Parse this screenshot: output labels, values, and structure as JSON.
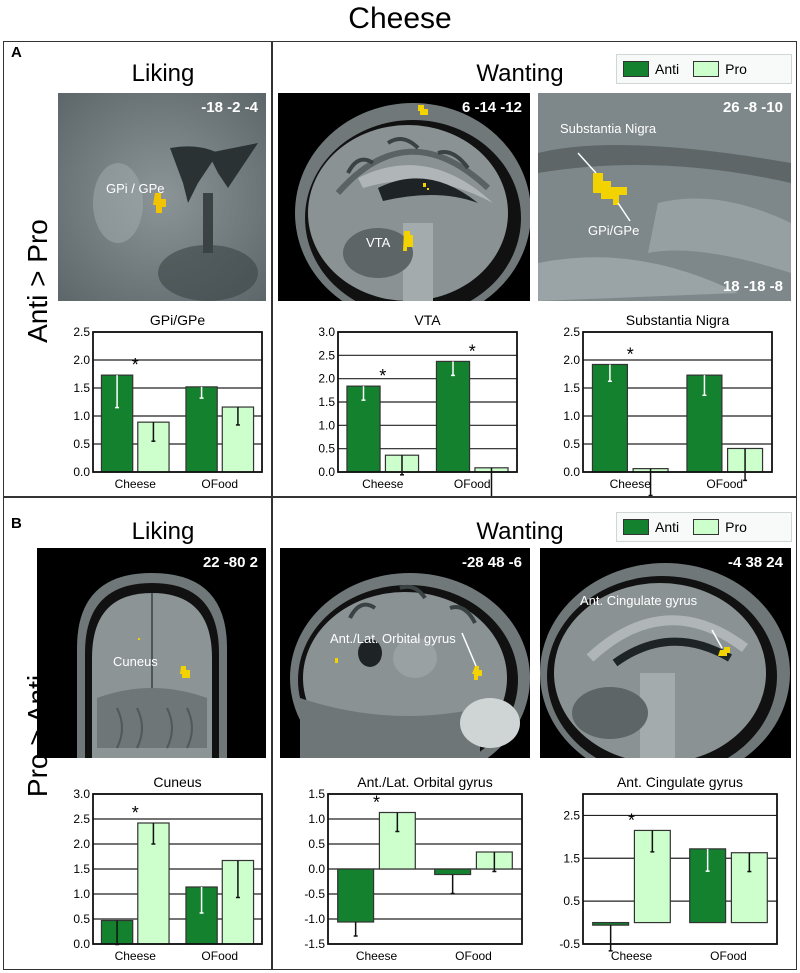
{
  "figure_title": "Cheese",
  "colors": {
    "anti": "#13812e",
    "pro": "#ccffcc",
    "highlight": "#f2d300"
  },
  "legend": {
    "anti": "Anti",
    "pro": "Pro"
  },
  "panels": [
    {
      "letter": "A",
      "side_label": "Anti > Pro",
      "liking_title": "Liking",
      "wanting_title": "Wanting",
      "images": [
        {
          "coord": "-18 -2 -4",
          "labels": [
            "GPi / GPe"
          ]
        },
        {
          "coord": "6 -14 -12",
          "labels": [
            "VTA"
          ]
        },
        {
          "coord": "26 -8 -10",
          "coord2": "18 -18 -8",
          "labels": [
            "Substantia Nigra",
            "GPi/GPe"
          ]
        }
      ]
    },
    {
      "letter": "B",
      "side_label": "Pro > Anti",
      "liking_title": "Liking",
      "wanting_title": "Wanting",
      "images": [
        {
          "coord": "22 -80 2",
          "labels": [
            "Cuneus"
          ]
        },
        {
          "coord": "-28 48 -6",
          "labels": [
            "Ant./Lat. Orbital gyrus"
          ]
        },
        {
          "coord": "-4 38 24",
          "labels": [
            "Ant. Cingulate gyrus"
          ]
        }
      ]
    }
  ],
  "chart_data": [
    {
      "type": "bar",
      "title": "GPi/GPe",
      "categories": [
        "Cheese",
        "OFood"
      ],
      "series": [
        {
          "name": "Anti",
          "values": [
            1.73,
            1.52
          ],
          "errors": [
            0.58,
            0.2
          ]
        },
        {
          "name": "Pro",
          "values": [
            0.89,
            1.16
          ],
          "errors": [
            0.34,
            0.32
          ]
        }
      ],
      "ylim": [
        0,
        2.5
      ],
      "yticks": [
        "0.0",
        "0.5",
        "1.0",
        "1.5",
        "2.0",
        "2.5"
      ],
      "grid": true,
      "significance": [
        "Cheese"
      ]
    },
    {
      "type": "bar",
      "title": "VTA",
      "categories": [
        "Cheese",
        "OFood"
      ],
      "series": [
        {
          "name": "Anti",
          "values": [
            1.84,
            2.37
          ],
          "errors": [
            0.3,
            0.3
          ]
        },
        {
          "name": "Pro",
          "values": [
            0.36,
            0.09
          ],
          "errors": [
            0.42,
            0.68
          ]
        }
      ],
      "ylim": [
        0,
        3.0
      ],
      "yticks": [
        "0.0",
        "0.5",
        "1.0",
        "1.5",
        "2.0",
        "2.5",
        "3.0"
      ],
      "grid": true,
      "significance": [
        "Cheese",
        "OFood"
      ]
    },
    {
      "type": "bar",
      "title": "Substantia Nigra",
      "categories": [
        "Cheese",
        "OFood"
      ],
      "series": [
        {
          "name": "Anti",
          "values": [
            1.92,
            1.73
          ],
          "errors": [
            0.3,
            0.36
          ]
        },
        {
          "name": "Pro",
          "values": [
            0.06,
            0.42
          ],
          "errors": [
            0.48,
            0.57
          ]
        }
      ],
      "ylim": [
        0,
        2.5
      ],
      "yticks": [
        "0.0",
        "0.5",
        "1.0",
        "1.5",
        "2.0",
        "2.5"
      ],
      "grid": true,
      "significance": [
        "Cheese"
      ]
    },
    {
      "type": "bar",
      "title": "Cuneus",
      "categories": [
        "Cheese",
        "OFood"
      ],
      "series": [
        {
          "name": "Anti",
          "values": [
            0.47,
            1.14
          ],
          "errors": [
            0.48,
            0.52
          ]
        },
        {
          "name": "Pro",
          "values": [
            2.42,
            1.67
          ],
          "errors": [
            0.42,
            0.74
          ]
        }
      ],
      "ylim": [
        0,
        3.0
      ],
      "yticks": [
        "0.0",
        "0.5",
        "1.0",
        "1.5",
        "2.0",
        "2.5",
        "3.0"
      ],
      "grid": true,
      "significance": [
        "Cheese"
      ]
    },
    {
      "type": "bar",
      "title": "Ant./Lat. Orbital gyrus",
      "categories": [
        "Cheese",
        "OFood"
      ],
      "series": [
        {
          "name": "Anti",
          "values": [
            -1.06,
            -0.11
          ],
          "errors": [
            0.28,
            0.38
          ]
        },
        {
          "name": "Pro",
          "values": [
            1.13,
            0.34
          ],
          "errors": [
            0.38,
            0.39
          ]
        }
      ],
      "ylim": [
        -1.5,
        1.5
      ],
      "yticks": [
        "-1.5",
        "-1.0",
        "-0.5",
        "0.0",
        "0.5",
        "1.0",
        "1.5"
      ],
      "grid": true,
      "significance": [
        "Cheese"
      ]
    },
    {
      "type": "bar",
      "title": "Ant. Cingulate gyrus",
      "categories": [
        "Cheese",
        "OFood"
      ],
      "series": [
        {
          "name": "Anti",
          "values": [
            -0.06,
            1.72
          ],
          "errors": [
            0.6,
            0.52
          ]
        },
        {
          "name": "Pro",
          "values": [
            2.15,
            1.63
          ],
          "errors": [
            0.5,
            0.44
          ]
        }
      ],
      "ylim": [
        -0.5,
        3.0
      ],
      "yticks": [
        "-0.5",
        "0.5",
        "1.5",
        "2.5"
      ],
      "grid": true,
      "significance": [
        "Cheese"
      ]
    }
  ]
}
